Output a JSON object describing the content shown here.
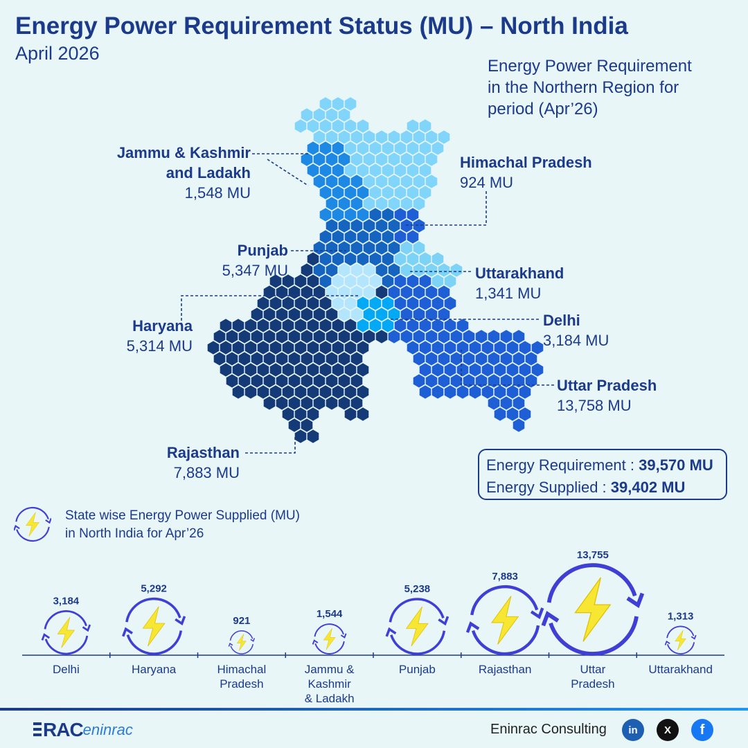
{
  "header": {
    "title": "Energy Power Requirement Status (MU) – North India",
    "subtitle": "April 2026"
  },
  "map": {
    "caption_lines": [
      "Energy Power Requirement",
      "in the Northern Region for",
      "period (Apr’26)"
    ],
    "states": [
      {
        "name_lines": [
          "Jammu & Kashmir",
          "and Ladakh"
        ],
        "value": "1,548 MU",
        "color": "#1e88e5"
      },
      {
        "name_lines": [
          "Himachal Pradesh"
        ],
        "value": "924 MU",
        "color": "#81d4fa"
      },
      {
        "name_lines": [
          "Punjab"
        ],
        "value": "5,347 MU",
        "color": "#1565c0"
      },
      {
        "name_lines": [
          "Uttarakhand"
        ],
        "value": "1,341 MU",
        "color": "#7dd3f5"
      },
      {
        "name_lines": [
          "Haryana"
        ],
        "value": "5,314 MU",
        "color": "#b3e5fc"
      },
      {
        "name_lines": [
          "Delhi"
        ],
        "value": "3,184 MU",
        "color": "#03a9f4"
      },
      {
        "name_lines": [
          "Uttar Pradesh"
        ],
        "value": "13,758 MU",
        "color": "#1e5fd6"
      },
      {
        "name_lines": [
          "Rajasthan"
        ],
        "value": "7,883 MU",
        "color": "#143a78"
      }
    ]
  },
  "summary": {
    "requirement_label": "Energy Requirement : ",
    "requirement_value": "39,570 MU",
    "supplied_label": "Energy Supplied : ",
    "supplied_value": "39,402 MU"
  },
  "supplied_chart": {
    "caption_lines": [
      "State wise Energy Power Supplied (MU)",
      "in North India for Apr’26"
    ]
  },
  "chart_data": {
    "type": "bar",
    "title": "State wise Energy Power Supplied (MU) in North India for Apr’26",
    "categories": [
      "Delhi",
      "Haryana",
      "Himachal Pradesh",
      "Jammu & Kashmir & Ladakh",
      "Punjab",
      "Rajasthan",
      "Uttar Pradesh",
      "Uttarakhand"
    ],
    "category_lines": [
      [
        "Delhi"
      ],
      [
        "Haryana"
      ],
      [
        "Himachal",
        "Pradesh"
      ],
      [
        "Jammu &",
        "Kashmir",
        "& Ladakh"
      ],
      [
        "Punjab"
      ],
      [
        "Rajasthan"
      ],
      [
        "Uttar",
        "Pradesh"
      ],
      [
        "Uttarakhand"
      ]
    ],
    "values": [
      3184,
      5292,
      921,
      1544,
      5238,
      7883,
      13755,
      1313
    ],
    "value_labels": [
      "3,184",
      "5,292",
      "921",
      "1,544",
      "5,238",
      "7,883",
      "13,755",
      "1,313"
    ],
    "marker": "lightning-icon in circular arrows, sized by value",
    "xlabel": "",
    "ylabel": ""
  },
  "footer": {
    "brand": "Eninrac Consulting",
    "logo_text_1": "RAC",
    "logo_text_2": "eninrac",
    "social": [
      "in",
      "X",
      "f"
    ]
  },
  "colors": {
    "navy": "#1b3a8a",
    "bolt": "#f7e733",
    "ring": "#3f3fd6",
    "background": "#e9f6f8"
  }
}
